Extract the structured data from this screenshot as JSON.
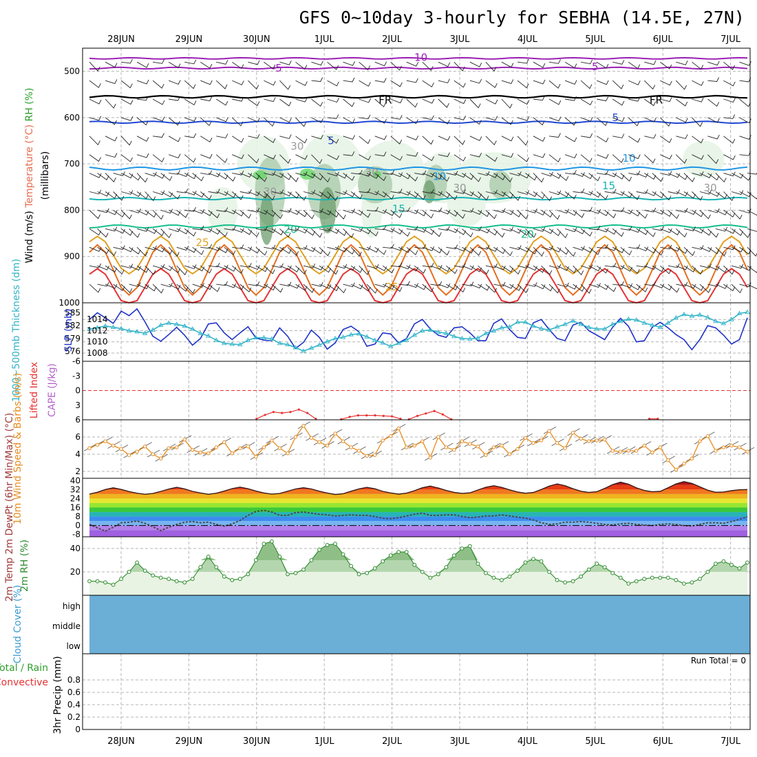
{
  "title": "GFS 0~10day 3-hourly for SEBHA (14.5E, 27N)",
  "chart_data": [
    {
      "type": "contour",
      "panel": "upper-air",
      "ylabel_parts": [
        "Wind",
        "(m/s)",
        "Temperature",
        "(°C)",
        "RH",
        "(%)"
      ],
      "ylabel_units": "(millibars)",
      "y_ticks": [
        500,
        600,
        700,
        800,
        900,
        1000
      ],
      "ylim": [
        450,
        1000
      ],
      "x_dates": [
        "28JUN",
        "29JUN",
        "30JUN",
        "1JUL",
        "2JUL",
        "3JUL",
        "4JUL",
        "5JUL",
        "6JUL",
        "7JUL"
      ],
      "isotherms": [
        {
          "label": "-10",
          "color": "#9b1fb5",
          "level": 472,
          "amp": 4,
          "surface": false
        },
        {
          "label": "-5",
          "color": "#9b1fb5",
          "level": 493,
          "amp": 5,
          "surface": false
        },
        {
          "label": "FR",
          "color": "#000000",
          "level": 555,
          "amp": 7,
          "surface": false
        },
        {
          "label": "5",
          "color": "#1e46d2",
          "level": 610,
          "amp": 6,
          "surface": false
        },
        {
          "label": "10",
          "color": "#1e96e6",
          "level": 710,
          "amp": 9,
          "surface": false
        },
        {
          "label": "15",
          "color": "#14b4b4",
          "level": 775,
          "amp": 7,
          "surface": false
        },
        {
          "label": "20",
          "color": "#14be8c",
          "level": 835,
          "amp": 9,
          "surface": false
        },
        {
          "label": "25",
          "color": "#e1a01e",
          "level": 890,
          "amp": 45,
          "surface": true
        },
        {
          "label": "",
          "color": "#e66e1e",
          "level": 920,
          "amp": 60,
          "surface": true
        },
        {
          "label": "",
          "color": "#e63232",
          "level": 960,
          "amp": 45,
          "surface": true
        }
      ],
      "inline_labels": [
        {
          "text": "-10",
          "color": "#9b1fb5",
          "day": 4.4,
          "p": 470
        },
        {
          "text": "-5",
          "color": "#9b1fb5",
          "day": 2.3,
          "p": 493
        },
        {
          "text": "5",
          "color": "#9b1fb5",
          "day": 7.0,
          "p": 490
        },
        {
          "text": "FR",
          "color": "#000000",
          "day": 3.9,
          "p": 562
        },
        {
          "text": "FR",
          "color": "#000000",
          "day": 7.9,
          "p": 562
        },
        {
          "text": "5",
          "color": "#1e46d2",
          "day": 3.1,
          "p": 650
        },
        {
          "text": "5",
          "color": "#1e46d2",
          "day": 7.3,
          "p": 600
        },
        {
          "text": "10",
          "color": "#1e96e6",
          "day": 4.7,
          "p": 727
        },
        {
          "text": "10",
          "color": "#1e96e6",
          "day": 7.5,
          "p": 688
        },
        {
          "text": "15",
          "color": "#14b4b4",
          "day": 4.1,
          "p": 797
        },
        {
          "text": "15",
          "color": "#14b4b4",
          "day": 7.2,
          "p": 747
        },
        {
          "text": "20",
          "color": "#14be8c",
          "day": 2.5,
          "p": 842
        },
        {
          "text": "20",
          "color": "#14be8c",
          "day": 6.0,
          "p": 852
        },
        {
          "text": "25",
          "color": "#e1a01e",
          "day": 1.2,
          "p": 870
        },
        {
          "text": "25",
          "color": "#e1a01e",
          "day": 4.0,
          "p": 966
        },
        {
          "text": "30",
          "color": "#999999",
          "day": 2.6,
          "p": 662
        },
        {
          "text": "30",
          "color": "#999999",
          "day": 2.2,
          "p": 760
        },
        {
          "text": "30",
          "color": "#999999",
          "day": 3.7,
          "p": 718
        },
        {
          "text": "30",
          "color": "#999999",
          "day": 5.0,
          "p": 752
        },
        {
          "text": "30",
          "color": "#999999",
          "day": 8.7,
          "p": 752
        }
      ],
      "rh_shading": [
        "#e6f4e6",
        "#a8c8a8",
        "#6e9e6e",
        "#5fd45f"
      ]
    },
    {
      "type": "line",
      "panel": "slp-thickness",
      "ylabel_left": "1000~500mb Thickness (dm)",
      "ylabel_right": "SLP (mb)",
      "left_ticks": [
        576,
        579,
        582,
        585
      ],
      "right_ticks": [
        1008,
        1010,
        1012,
        1014
      ],
      "series": [
        {
          "key": "slp",
          "color": "#1e32c8",
          "marker": "none",
          "values": [
            1014.0,
            1015.2,
            1014.3,
            1013.3,
            1015.5,
            1014.7,
            1015.9,
            1013.6,
            1011.0,
            1010.1,
            1011.3,
            1012.6,
            1011.2,
            1009.4,
            1010.6,
            1013.2,
            1013.4,
            1011.6,
            1010.4,
            1011.6,
            1012.7,
            1010.7,
            1010.3,
            1010.2,
            1012.5,
            1011.0,
            1008.8,
            1009.9,
            1012.1,
            1010.8,
            1008.7,
            1009.8,
            1012.2,
            1012.8,
            1011.8,
            1009.2,
            1009.6,
            1011.6,
            1011.4,
            1009.8,
            1010.6,
            1013.2,
            1014.0,
            1012.3,
            1011.2,
            1010.8,
            1012.5,
            1012.7,
            1011.6,
            1010.2,
            1010.2,
            1013.3,
            1014.1,
            1012.2,
            1010.8,
            1010.6,
            1013.4,
            1014.0,
            1012.2,
            1010.6,
            1010.2,
            1013.0,
            1013.5,
            1012.0,
            1011.2,
            1010.4,
            1012.6,
            1014.2,
            1012.8,
            1010.0,
            1010.2,
            1012.6,
            1013.5,
            1012.5,
            1011.3,
            1010.4,
            1008.6,
            1010.4,
            1012.9,
            1012.5,
            1011.2,
            1009.6,
            1010.4,
            1014.3
          ]
        },
        {
          "key": "thickness",
          "color": "#32b4c8",
          "marker": "triangle",
          "values": [
            581.2,
            581.5,
            581.9,
            581.6,
            581.3,
            580.8,
            580.6,
            580.2,
            581.0,
            582.1,
            582.6,
            582.3,
            581.9,
            581.2,
            580.2,
            579.6,
            578.6,
            577.9,
            577.7,
            577.6,
            578.6,
            579.2,
            579.2,
            578.9,
            577.9,
            577.6,
            576.9,
            576.1,
            576.8,
            577.5,
            578.3,
            579.0,
            579.3,
            579.9,
            580.1,
            579.4,
            578.6,
            578.0,
            577.2,
            577.9,
            578.6,
            579.8,
            580.8,
            581.0,
            580.5,
            580.2,
            579.5,
            579.0,
            578.9,
            579.1,
            580.2,
            580.8,
            581.5,
            581.7,
            582.8,
            582.8,
            581.9,
            581.3,
            581.0,
            581.7,
            582.3,
            583.1,
            582.3,
            581.6,
            581.2,
            581.2,
            582.3,
            583.0,
            583.5,
            583.3,
            582.6,
            582.1,
            581.6,
            582.6,
            583.8,
            584.6,
            584.2,
            584.5,
            583.9,
            583.0,
            582.5,
            583.4,
            584.8,
            585.1
          ]
        }
      ]
    },
    {
      "type": "line",
      "panel": "instability",
      "ylabel_left": "Lifted Index",
      "ylabel_right": "CAPE (J/kg)",
      "y_ticks": [
        6,
        3,
        0,
        -3,
        -6
      ],
      "ylim": [
        -6,
        6
      ],
      "series": [
        {
          "key": "lifted_index",
          "color": "#e63232",
          "segments": [
            {
              "start_day": 2.0,
              "values": [
                5.8,
                5.0,
                4.4,
                4.6,
                4.4,
                3.9,
                4.6,
                5.8
              ]
            },
            {
              "start_day": 3.25,
              "values": [
                5.9,
                5.4,
                5.1,
                5.1,
                5.1,
                5.2,
                5.3,
                5.8
              ]
            },
            {
              "start_day": 4.25,
              "values": [
                5.9,
                5.2,
                4.7,
                4.2,
                4.9,
                5.9
              ]
            },
            {
              "start_day": 7.8,
              "values": [
                5.8,
                5.8
              ]
            }
          ]
        }
      ]
    },
    {
      "type": "line",
      "panel": "10m-wind",
      "ylabel": "10m Wind Speed & Barbs (m/s)",
      "y_ticks": [
        2,
        4,
        6
      ],
      "ylim": [
        1.2,
        8.0
      ],
      "series": [
        {
          "key": "wind_speed",
          "color": "#e68c1e",
          "marker": "circle",
          "values": [
            4.7,
            5.1,
            5.5,
            5.0,
            4.6,
            3.9,
            4.3,
            4.9,
            4.0,
            3.5,
            4.7,
            4.8,
            5.7,
            4.5,
            4.2,
            4.1,
            4.8,
            5.4,
            4.1,
            4.7,
            4.9,
            3.7,
            4.8,
            5.6,
            4.7,
            4.1,
            6.0,
            7.3,
            5.9,
            5.4,
            5.0,
            6.4,
            5.5,
            4.8,
            4.4,
            3.8,
            3.9,
            5.6,
            6.1,
            7.0,
            4.8,
            5.0,
            5.5,
            3.6,
            6.0,
            4.8,
            4.5,
            5.5,
            5.2,
            4.9,
            3.9,
            4.8,
            5.0,
            4.0,
            4.6,
            5.9,
            5.3,
            5.6,
            6.7,
            5.3,
            4.7,
            6.5,
            5.8,
            5.5,
            5.6,
            5.7,
            4.4,
            4.3,
            4.4,
            4.4,
            5.0,
            4.2,
            4.8,
            3.3,
            2.2,
            2.9,
            3.5,
            5.5,
            6.1,
            4.4,
            4.8,
            5.0,
            4.8,
            4.3
          ]
        }
      ]
    },
    {
      "type": "area",
      "panel": "2m-temp",
      "ylabel": "2m Temp 2m DewPt (6hr Min/Max) (°C)",
      "y_ticks": [
        -8,
        0,
        8,
        16,
        24,
        32,
        40
      ],
      "ylim": [
        -10,
        42
      ],
      "bands": [
        "#a060e0",
        "#b482ec",
        "#78b4f0",
        "#3c8cf0",
        "#28b4b4",
        "#3cc83c",
        "#96e632",
        "#e6e632",
        "#f0b41e",
        "#f0781e",
        "#e63c14",
        "#b41414"
      ],
      "series": [
        {
          "key": "temperature",
          "color": "#3a1a1a",
          "values": [
            28.0,
            29.6,
            32.0,
            33.5,
            32.1,
            30.2,
            28.7,
            27.8,
            28.5,
            30.4,
            32.4,
            34.0,
            32.6,
            30.4,
            29.0,
            27.8,
            28.7,
            30.6,
            32.8,
            34.2,
            32.7,
            30.6,
            29.0,
            28.0,
            28.5,
            30.5,
            32.5,
            33.6,
            32.5,
            30.5,
            28.9,
            27.6,
            28.3,
            30.5,
            32.6,
            33.9,
            32.7,
            30.4,
            29.0,
            27.9,
            28.8,
            31.0,
            33.6,
            35.0,
            33.4,
            31.2,
            29.5,
            28.6,
            29.1,
            31.6,
            34.0,
            35.4,
            33.9,
            31.7,
            29.8,
            28.7,
            29.4,
            32.0,
            35.0,
            37.0,
            35.4,
            32.7,
            30.5,
            29.4,
            30.1,
            33.0,
            36.4,
            38.6,
            36.8,
            33.5,
            31.2,
            30.0,
            30.4,
            33.6,
            37.0,
            39.0,
            37.5,
            34.4,
            31.4,
            29.6,
            29.8,
            31.0,
            31.8,
            32.0
          ]
        },
        {
          "key": "dewpoint",
          "color": "#4a4a4a",
          "dashed": true,
          "values": [
            1.0,
            -2.0,
            -5.0,
            -1.5,
            2.5,
            3.0,
            4.0,
            2.0,
            -1.0,
            -4.5,
            -1.5,
            1.0,
            3.0,
            3.5,
            2.5,
            3.0,
            1.0,
            -0.5,
            1.5,
            4.5,
            9.0,
            12.5,
            13.5,
            12.0,
            9.0,
            9.0,
            11.5,
            12.0,
            11.0,
            10.0,
            9.5,
            8.5,
            9.0,
            9.5,
            9.0,
            9.0,
            8.0,
            6.5,
            6.0,
            7.0,
            8.5,
            10.0,
            11.0,
            9.0,
            9.0,
            9.5,
            9.5,
            8.0,
            7.0,
            7.5,
            8.5,
            8.5,
            9.5,
            8.5,
            7.5,
            6.5,
            5.0,
            2.5,
            1.0,
            1.5,
            3.0,
            3.0,
            3.5,
            3.0,
            2.0,
            1.0,
            0.5,
            1.5,
            2.0,
            1.0,
            0.5,
            0.0,
            1.0,
            1.5,
            1.0,
            0.0,
            -0.5,
            1.0,
            2.5,
            2.5,
            2.0,
            3.5,
            5.5,
            8.0
          ]
        }
      ]
    },
    {
      "type": "area",
      "panel": "2m-rh",
      "ylabel": "2m RH (%)",
      "y_ticks": [
        20,
        40
      ],
      "ylim": [
        0,
        50
      ],
      "series": [
        {
          "key": "rh",
          "color": "#2e8b2e",
          "marker": "circle",
          "values": [
            12,
            12,
            11,
            9,
            14,
            20,
            28,
            21,
            17,
            15,
            14,
            12,
            11,
            14,
            24,
            33,
            24,
            16,
            13,
            14,
            18,
            30,
            44,
            46,
            33,
            18,
            19,
            22,
            30,
            39,
            43,
            44,
            35,
            25,
            18,
            19,
            23,
            29,
            34,
            37,
            37,
            26,
            20,
            15,
            18,
            24,
            34,
            40,
            42,
            27,
            19,
            15,
            13,
            16,
            21,
            28,
            31,
            29,
            20,
            13,
            11,
            12,
            16,
            22,
            27,
            24,
            19,
            15,
            10,
            12,
            14,
            15,
            15,
            15,
            13,
            10,
            11,
            14,
            20,
            27,
            29,
            26,
            23,
            28
          ]
        }
      ]
    },
    {
      "type": "bar",
      "panel": "cloud-cover",
      "ylabel": "Cloud Cover (%)",
      "levels": [
        "high",
        "middle",
        "low"
      ],
      "fill_color": "#6baed6"
    },
    {
      "type": "bar",
      "panel": "precip",
      "ylabel": "3hr Precip (mm)",
      "legend_left": [
        "Total / Rain",
        "Convective"
      ],
      "y_ticks": [
        0,
        0.2,
        0.4,
        0.6,
        0.8
      ],
      "ylim": [
        0,
        1
      ],
      "run_total": "Run Total = 0",
      "values": []
    }
  ]
}
